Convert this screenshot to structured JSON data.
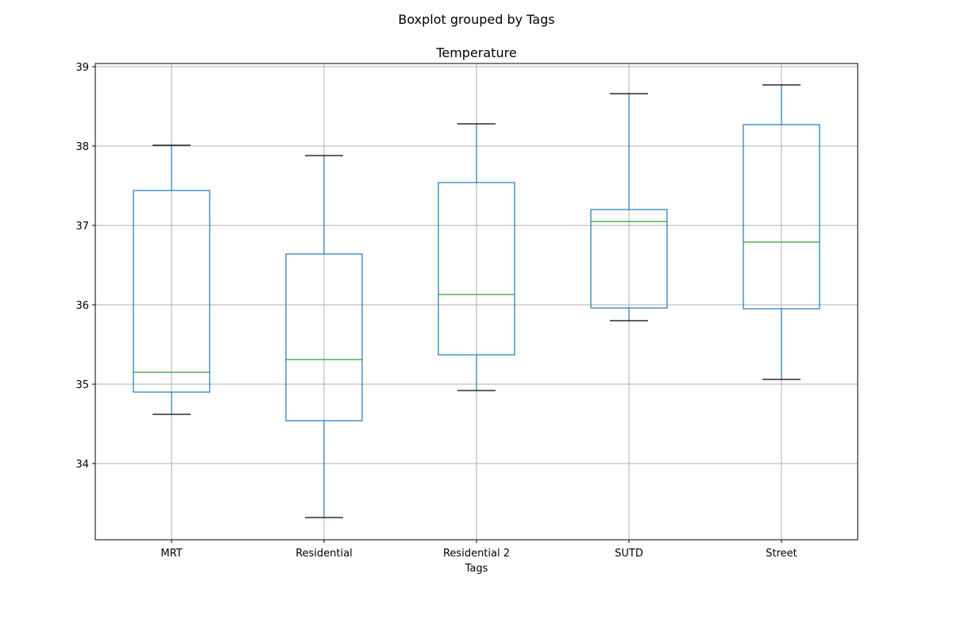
{
  "figure": {
    "suptitle": "Boxplot grouped by Tags"
  },
  "chart_data": {
    "type": "box",
    "title": "Temperature",
    "xlabel": "Tags",
    "ylabel": "",
    "ylim": [
      33.04,
      39.04
    ],
    "yticks": [
      34,
      35,
      36,
      37,
      38,
      39
    ],
    "grid": true,
    "categories": [
      "MRT",
      "Residential",
      "Residential 2",
      "SUTD",
      "Street"
    ],
    "boxes": [
      {
        "category": "MRT",
        "whisker_low": 34.62,
        "q1": 34.9,
        "median": 35.15,
        "q3": 37.44,
        "whisker_high": 38.01
      },
      {
        "category": "Residential",
        "whisker_low": 33.32,
        "q1": 34.54,
        "median": 35.31,
        "q3": 36.64,
        "whisker_high": 37.88
      },
      {
        "category": "Residential 2",
        "whisker_low": 34.92,
        "q1": 35.37,
        "median": 36.13,
        "q3": 37.54,
        "whisker_high": 38.28
      },
      {
        "category": "SUTD",
        "whisker_low": 35.8,
        "q1": 35.96,
        "median": 37.05,
        "q3": 37.2,
        "whisker_high": 38.66
      },
      {
        "category": "Street",
        "whisker_low": 35.06,
        "q1": 35.95,
        "median": 36.79,
        "q3": 38.27,
        "whisker_high": 38.77
      }
    ],
    "colors": {
      "box": "#1f77b4",
      "median": "#2ca02c",
      "cap": "#000000",
      "grid": "#b0b0b0",
      "axes": "#000000"
    }
  }
}
